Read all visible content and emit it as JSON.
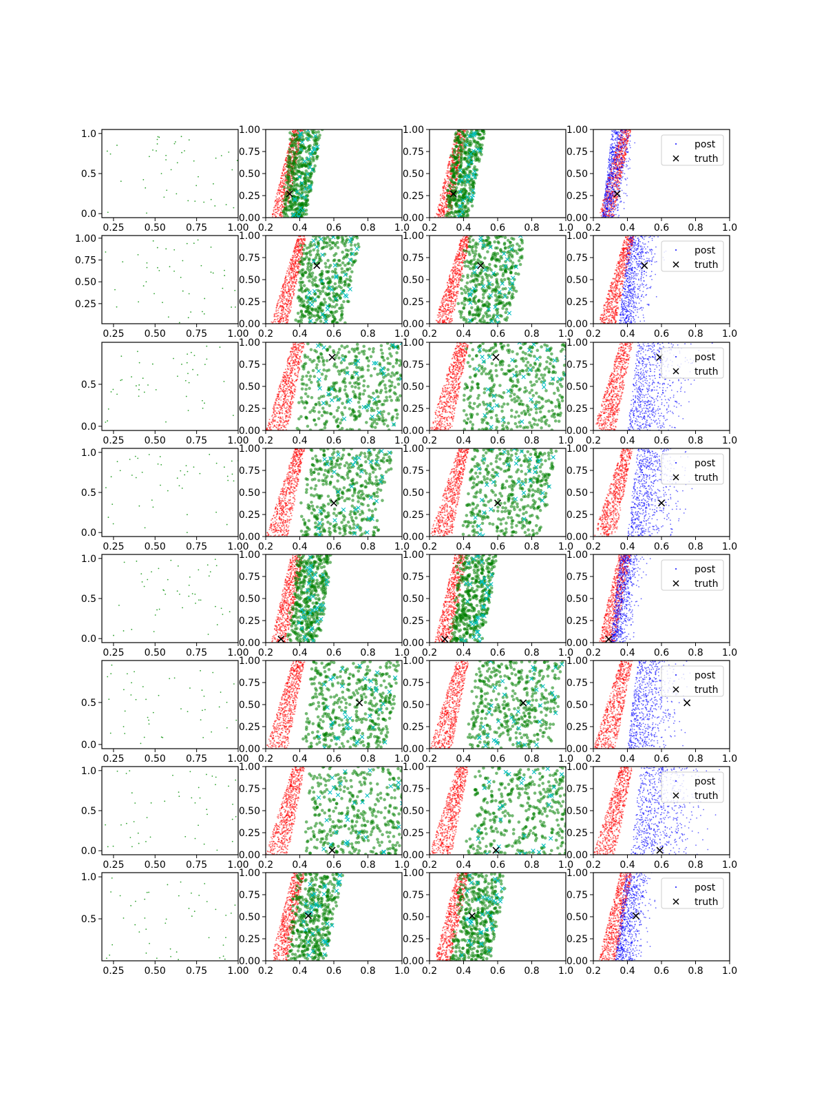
{
  "figure": {
    "rows": 8,
    "cols": 4,
    "legend_position": "upper-right"
  },
  "colors": {
    "prior": "#2ca02c",
    "truth": "#000000",
    "post": "#0000ff",
    "model_a": "#ff0000",
    "model_b": "#008000",
    "model_b_marker": "#00bfbf"
  },
  "legend": {
    "post_label": "post",
    "truth_label": "truth"
  },
  "axes": {
    "col1": {
      "xlim": [
        0.18,
        1.0
      ],
      "xticks": [
        "0.25",
        "0.50",
        "0.75",
        "1.00"
      ],
      "xtick_values": [
        0.25,
        0.5,
        0.75,
        1.0
      ],
      "yticks_by_row": [
        {
          "labels": [
            "0.0",
            "0.5",
            "1.0"
          ],
          "values": [
            0.0,
            0.5,
            1.0
          ],
          "ylim": [
            -0.05,
            1.05
          ]
        },
        {
          "labels": [
            "0.25",
            "0.50",
            "0.75",
            "1.00"
          ],
          "values": [
            0.25,
            0.5,
            0.75,
            1.0
          ],
          "ylim": [
            0.02,
            1.03
          ]
        },
        {
          "labels": [
            "0.0",
            "0.5"
          ],
          "values": [
            0.0,
            0.5
          ],
          "ylim": [
            -0.05,
            1.0
          ]
        },
        {
          "labels": [
            "0.0",
            "0.5",
            "1.0"
          ],
          "values": [
            0.0,
            0.5,
            1.0
          ],
          "ylim": [
            -0.05,
            1.05
          ]
        },
        {
          "labels": [
            "0.0",
            "0.5",
            "1.0"
          ],
          "values": [
            0.0,
            0.5,
            1.0
          ],
          "ylim": [
            -0.05,
            1.05
          ]
        },
        {
          "labels": [
            "0.0",
            "0.5"
          ],
          "values": [
            0.0,
            0.5
          ],
          "ylim": [
            -0.05,
            1.0
          ]
        },
        {
          "labels": [
            "0.0",
            "0.5",
            "1.0"
          ],
          "values": [
            0.0,
            0.5,
            1.0
          ],
          "ylim": [
            -0.05,
            1.05
          ]
        },
        {
          "labels": [
            "0.5",
            "1.0"
          ],
          "values": [
            0.5,
            1.0
          ],
          "ylim": [
            0.0,
            1.05
          ]
        }
      ]
    },
    "posterior": {
      "xlim": [
        0.2,
        1.0
      ],
      "ylim": [
        0.0,
        1.0
      ],
      "xticks": [
        "0.2",
        "0.4",
        "0.6",
        "0.8",
        "1.0"
      ],
      "xtick_values": [
        0.2,
        0.4,
        0.6,
        0.8,
        1.0
      ],
      "yticks": [
        "0.00",
        "0.25",
        "0.50",
        "0.75",
        "1.00"
      ],
      "ytick_values": [
        0.0,
        0.25,
        0.5,
        0.75,
        1.0
      ]
    }
  },
  "chart_data": {
    "type": "scatter",
    "rows": [
      {
        "truth": [
          0.34,
          0.27
        ],
        "red_band": [
          0.23,
          0.32,
          0.36,
          0.42
        ],
        "green_spread": [
          0.3,
          0.43
        ],
        "blue_spread": [
          0.25,
          0.4
        ]
      },
      {
        "truth": [
          0.5,
          0.66
        ],
        "red_band": [
          0.23,
          0.33,
          0.39,
          0.44
        ],
        "green_spread": [
          0.37,
          0.66
        ],
        "blue_spread": [
          0.35,
          0.58
        ]
      },
      {
        "truth": [
          0.59,
          0.83
        ],
        "red_band": [
          0.2,
          0.33,
          0.36,
          0.43
        ],
        "green_spread": [
          0.38,
          0.95
        ],
        "blue_spread": [
          0.4,
          0.87
        ]
      },
      {
        "truth": [
          0.6,
          0.38
        ],
        "red_band": [
          0.2,
          0.33,
          0.37,
          0.43
        ],
        "green_spread": [
          0.4,
          0.85
        ],
        "blue_spread": [
          0.4,
          0.8
        ]
      },
      {
        "truth": [
          0.29,
          0.04
        ],
        "red_band": [
          0.23,
          0.33,
          0.35,
          0.42
        ],
        "green_spread": [
          0.33,
          0.5
        ],
        "blue_spread": [
          0.3,
          0.46
        ]
      },
      {
        "truth": [
          0.75,
          0.52
        ],
        "red_band": [
          0.2,
          0.33,
          0.36,
          0.43
        ],
        "green_spread": [
          0.42,
          0.9
        ],
        "blue_spread": [
          0.4,
          0.8
        ]
      },
      {
        "truth": [
          0.59,
          0.05
        ],
        "red_band": [
          0.2,
          0.33,
          0.36,
          0.43
        ],
        "green_spread": [
          0.42,
          1.02
        ],
        "blue_spread": [
          0.42,
          1.0
        ]
      },
      {
        "truth": [
          0.45,
          0.51
        ],
        "red_band": [
          0.23,
          0.33,
          0.36,
          0.43
        ],
        "green_spread": [
          0.33,
          0.55
        ],
        "blue_spread": [
          0.33,
          0.55
        ]
      }
    ]
  }
}
